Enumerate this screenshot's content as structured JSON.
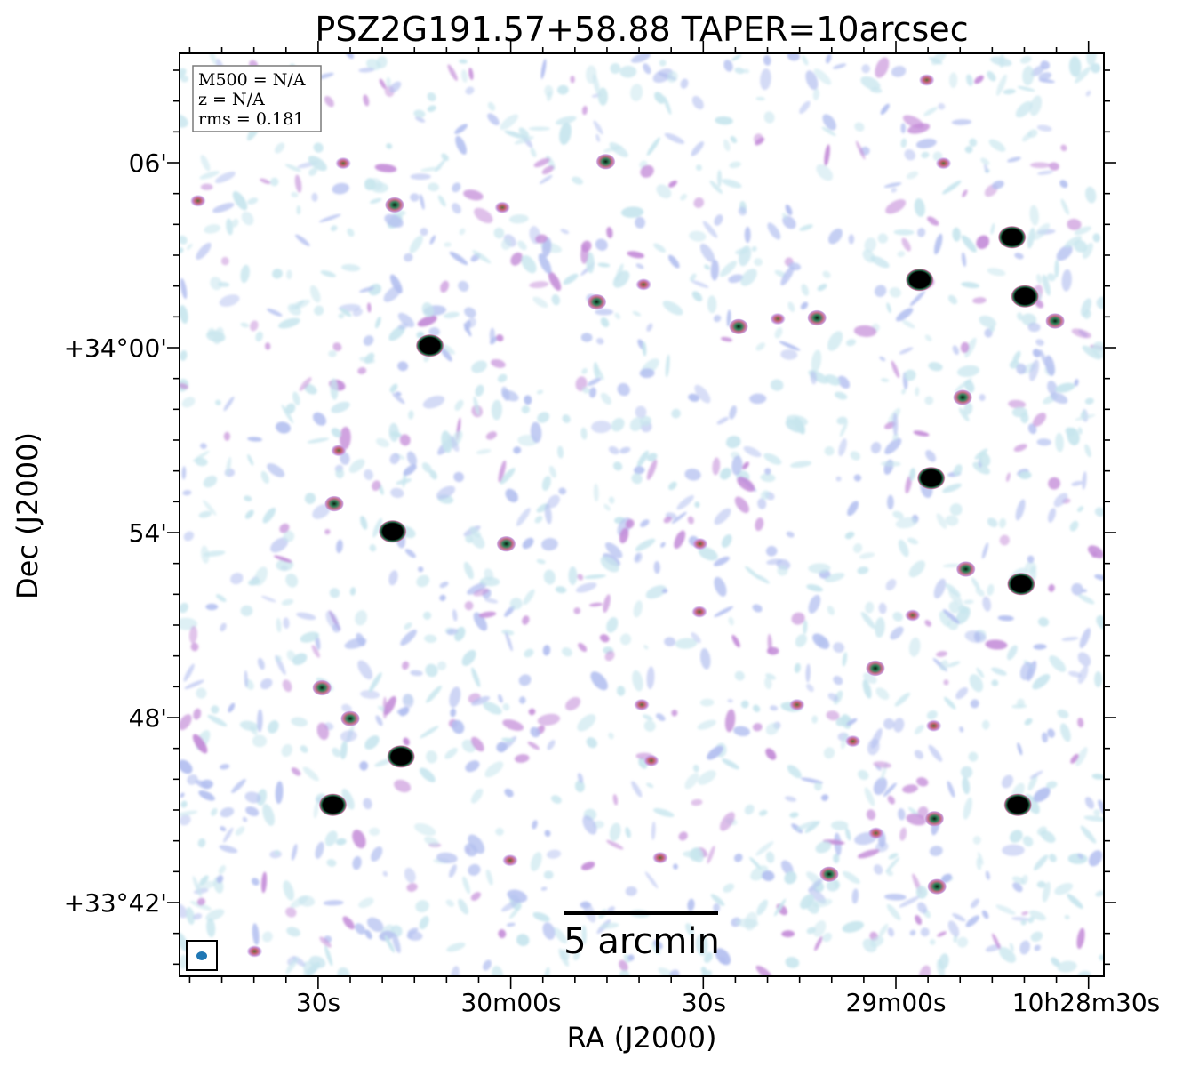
{
  "chart_data": {
    "type": "heatmap",
    "title": "PSZ2G191.57+58.88 TAPER=10arcsec",
    "xlabel": "RA (J2000)",
    "ylabel": "Dec (J2000)",
    "x_ticks": [
      "30s",
      "30m00s",
      "30s",
      "29m00s",
      "10h28m30s"
    ],
    "y_ticks": [
      "06'",
      "+34°00'",
      "54'",
      "48'",
      "+33°42'"
    ],
    "info_box": [
      "M500 = N/A",
      "z = N/A",
      "rms = 0.181"
    ],
    "scale_bar": "5 arcmin",
    "colormap": [
      "#ffffff",
      "#c8e6ee",
      "#b4c0f0",
      "#c48cd8",
      "#c86e8c",
      "#2a7a50",
      "#000000"
    ],
    "sources": [
      {
        "ra": "10:30:48.7",
        "dec": "+34:04:46",
        "peak": "weak"
      },
      {
        "ra": "10:30:26.1",
        "dec": "+34:05:59",
        "peak": "weak"
      },
      {
        "ra": "10:30:18.1",
        "dec": "+34:04:38",
        "peak": "medium"
      },
      {
        "ra": "10:30:01.3",
        "dec": "+34:04:33",
        "peak": "weak"
      },
      {
        "ra": "10:29:45.2",
        "dec": "+34:06:02",
        "peak": "medium"
      },
      {
        "ra": "10:29:39.3",
        "dec": "+34:02:03",
        "peak": "weak"
      },
      {
        "ra": "10:29:46.6",
        "dec": "+34:01:29",
        "peak": "medium"
      },
      {
        "ra": "10:30:12.6",
        "dec": "+34:00:04",
        "peak": "strong"
      },
      {
        "ra": "10:29:24.5",
        "dec": "+34:00:41",
        "peak": "medium"
      },
      {
        "ra": "10:29:18.4",
        "dec": "+34:00:56",
        "peak": "weak"
      },
      {
        "ra": "10:29:12.3",
        "dec": "+34:00:58",
        "peak": "medium"
      },
      {
        "ra": "10:28:56.3",
        "dec": "+34:02:12",
        "peak": "strong"
      },
      {
        "ra": "10:28:41.9",
        "dec": "+34:03:35",
        "peak": "strong"
      },
      {
        "ra": "10:28:39.9",
        "dec": "+34:01:40",
        "peak": "strong"
      },
      {
        "ra": "10:28:35.2",
        "dec": "+34:00:52",
        "peak": "medium"
      },
      {
        "ra": "10:28:52.6",
        "dec": "+34:05:59",
        "peak": "weak"
      },
      {
        "ra": "10:28:55.2",
        "dec": "+34:08:41",
        "peak": "weak"
      },
      {
        "ra": "10:28:49.6",
        "dec": "+33:58:23",
        "peak": "medium"
      },
      {
        "ra": "10:28:54.5",
        "dec": "+33:55:46",
        "peak": "strong"
      },
      {
        "ra": "10:30:26.8",
        "dec": "+33:56:40",
        "peak": "weak"
      },
      {
        "ra": "10:30:27.5",
        "dec": "+33:54:56",
        "peak": "medium"
      },
      {
        "ra": "10:30:18.4",
        "dec": "+33:54:02",
        "peak": "strong"
      },
      {
        "ra": "10:30:00.7",
        "dec": "+33:53:38",
        "peak": "medium"
      },
      {
        "ra": "10:29:30.5",
        "dec": "+33:53:38",
        "peak": "weak"
      },
      {
        "ra": "10:29:30.6",
        "dec": "+33:51:26",
        "peak": "weak"
      },
      {
        "ra": "10:28:49.1",
        "dec": "+33:52:49",
        "peak": "medium"
      },
      {
        "ra": "10:28:57.4",
        "dec": "+33:51:19",
        "peak": "weak"
      },
      {
        "ra": "10:28:40.5",
        "dec": "+33:52:20",
        "peak": "strong"
      },
      {
        "ra": "10:29:03.2",
        "dec": "+33:49:36",
        "peak": "medium"
      },
      {
        "ra": "10:28:54.1",
        "dec": "+33:47:44",
        "peak": "weak"
      },
      {
        "ra": "10:30:29.4",
        "dec": "+33:48:58",
        "peak": "medium"
      },
      {
        "ra": "10:30:25.0",
        "dec": "+33:47:58",
        "peak": "medium"
      },
      {
        "ra": "10:30:17.1",
        "dec": "+33:46:44",
        "peak": "strong"
      },
      {
        "ra": "10:30:27.7",
        "dec": "+33:45:10",
        "peak": "strong"
      },
      {
        "ra": "10:29:39.6",
        "dec": "+33:48:25",
        "peak": "weak"
      },
      {
        "ra": "10:29:38.1",
        "dec": "+33:46:36",
        "peak": "weak"
      },
      {
        "ra": "10:29:15.4",
        "dec": "+33:48:25",
        "peak": "weak"
      },
      {
        "ra": "10:29:06.7",
        "dec": "+33:47:14",
        "peak": "weak"
      },
      {
        "ra": "10:28:54.0",
        "dec": "+33:44:43",
        "peak": "medium"
      },
      {
        "ra": "10:28:41.0",
        "dec": "+33:45:10",
        "peak": "strong"
      },
      {
        "ra": "10:28:53.6",
        "dec": "+33:42:31",
        "peak": "medium"
      },
      {
        "ra": "10:29:10.4",
        "dec": "+33:42:55",
        "peak": "medium"
      },
      {
        "ra": "10:29:03.1",
        "dec": "+33:44:15",
        "peak": "weak"
      },
      {
        "ra": "10:29:36.7",
        "dec": "+33:43:27",
        "peak": "weak"
      },
      {
        "ra": "10:30:00.1",
        "dec": "+33:43:22",
        "peak": "weak"
      },
      {
        "ra": "10:30:39.9",
        "dec": "+33:40:25",
        "peak": "weak"
      }
    ]
  }
}
